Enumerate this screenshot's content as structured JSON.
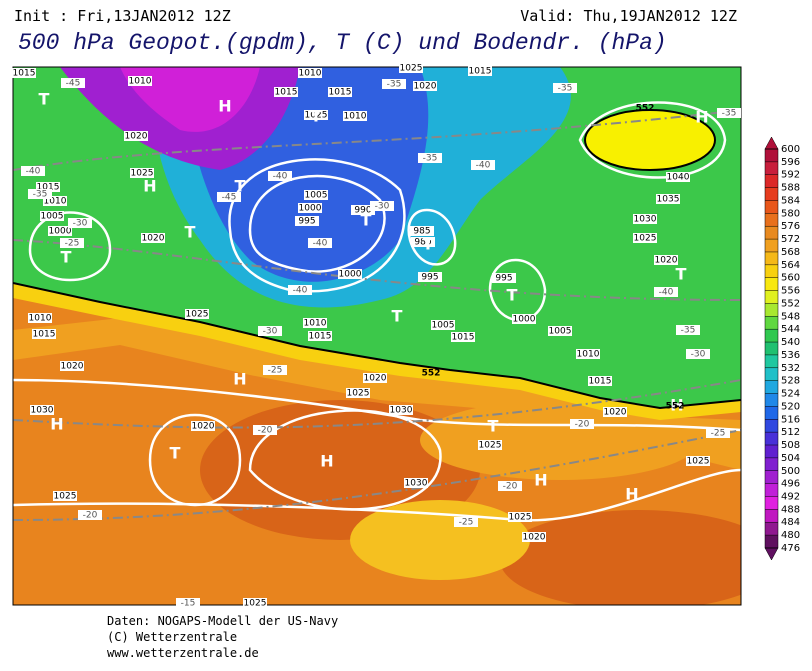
{
  "header": {
    "init": "Init : Fri,13JAN2012 12Z",
    "valid": "Valid: Thu,19JAN2012 12Z",
    "title": "500 hPa Geopot.(gpdm), T (C) und Bodendr. (hPa)"
  },
  "map": {
    "isobar_labels": [
      "1015",
      "1010",
      "1010",
      "1015",
      "1015",
      "1025",
      "1020",
      "1015",
      "1025",
      "1010",
      "1020",
      "1025",
      "1015",
      "1010",
      "1005",
      "1000",
      "1020",
      "1005",
      "1000",
      "995",
      "990",
      "985",
      "980",
      "1000",
      "995",
      "995",
      "1000",
      "1005",
      "1015",
      "1005",
      "1010",
      "1010",
      "1015",
      "1025",
      "1010",
      "1015",
      "1020",
      "1020",
      "1025",
      "1030",
      "1020",
      "1030",
      "1030",
      "1025",
      "1025",
      "1025",
      "1020",
      "1015",
      "1030",
      "1035",
      "1040",
      "1025",
      "1020",
      "1025",
      "1020",
      "1025"
    ],
    "temperature_labels": [
      "-45",
      "-35",
      "-35",
      "-35",
      "-40",
      "-35",
      "-30",
      "-25",
      "-45",
      "-40",
      "-30",
      "-40",
      "-35",
      "-40",
      "-40",
      "-30",
      "-25",
      "-20",
      "-20",
      "-15",
      "-20",
      "-25",
      "-20",
      "-25",
      "-30",
      "-35",
      "-40"
    ],
    "pressure_centers": [
      "T",
      "H",
      "T",
      "T",
      "H",
      "T",
      "T",
      "T",
      "T",
      "T",
      "T",
      "H",
      "T",
      "H",
      "H",
      "H",
      "T",
      "H",
      "T",
      "H",
      "H"
    ],
    "contour_labels": [
      "552",
      "552",
      "552"
    ]
  },
  "colorbar": {
    "ticks": [
      600,
      596,
      592,
      588,
      584,
      580,
      576,
      572,
      568,
      564,
      560,
      556,
      552,
      548,
      544,
      540,
      536,
      532,
      528,
      524,
      520,
      516,
      512,
      508,
      504,
      500,
      496,
      492,
      488,
      484,
      480,
      476
    ],
    "colors": [
      "#b0103a",
      "#c81e3c",
      "#dc2828",
      "#e63c1e",
      "#e8561a",
      "#e8701c",
      "#e88a20",
      "#f0a020",
      "#f5b818",
      "#f8d010",
      "#f8e810",
      "#e0f020",
      "#a8e830",
      "#60d840",
      "#30c850",
      "#20c070",
      "#20c8a0",
      "#20c0c8",
      "#20a8e0",
      "#2088e8",
      "#2068e8",
      "#3048e0",
      "#4830d8",
      "#6020d0",
      "#8020d0",
      "#a020d0",
      "#c020d8",
      "#e020e0",
      "#c018c0",
      "#901890",
      "#601060"
    ]
  },
  "footer": {
    "source": "Daten: NOGAPS-Modell der US-Navy",
    "copyright": "(C) Wetterzentrale",
    "url": "www.wetterzentrale.de"
  }
}
